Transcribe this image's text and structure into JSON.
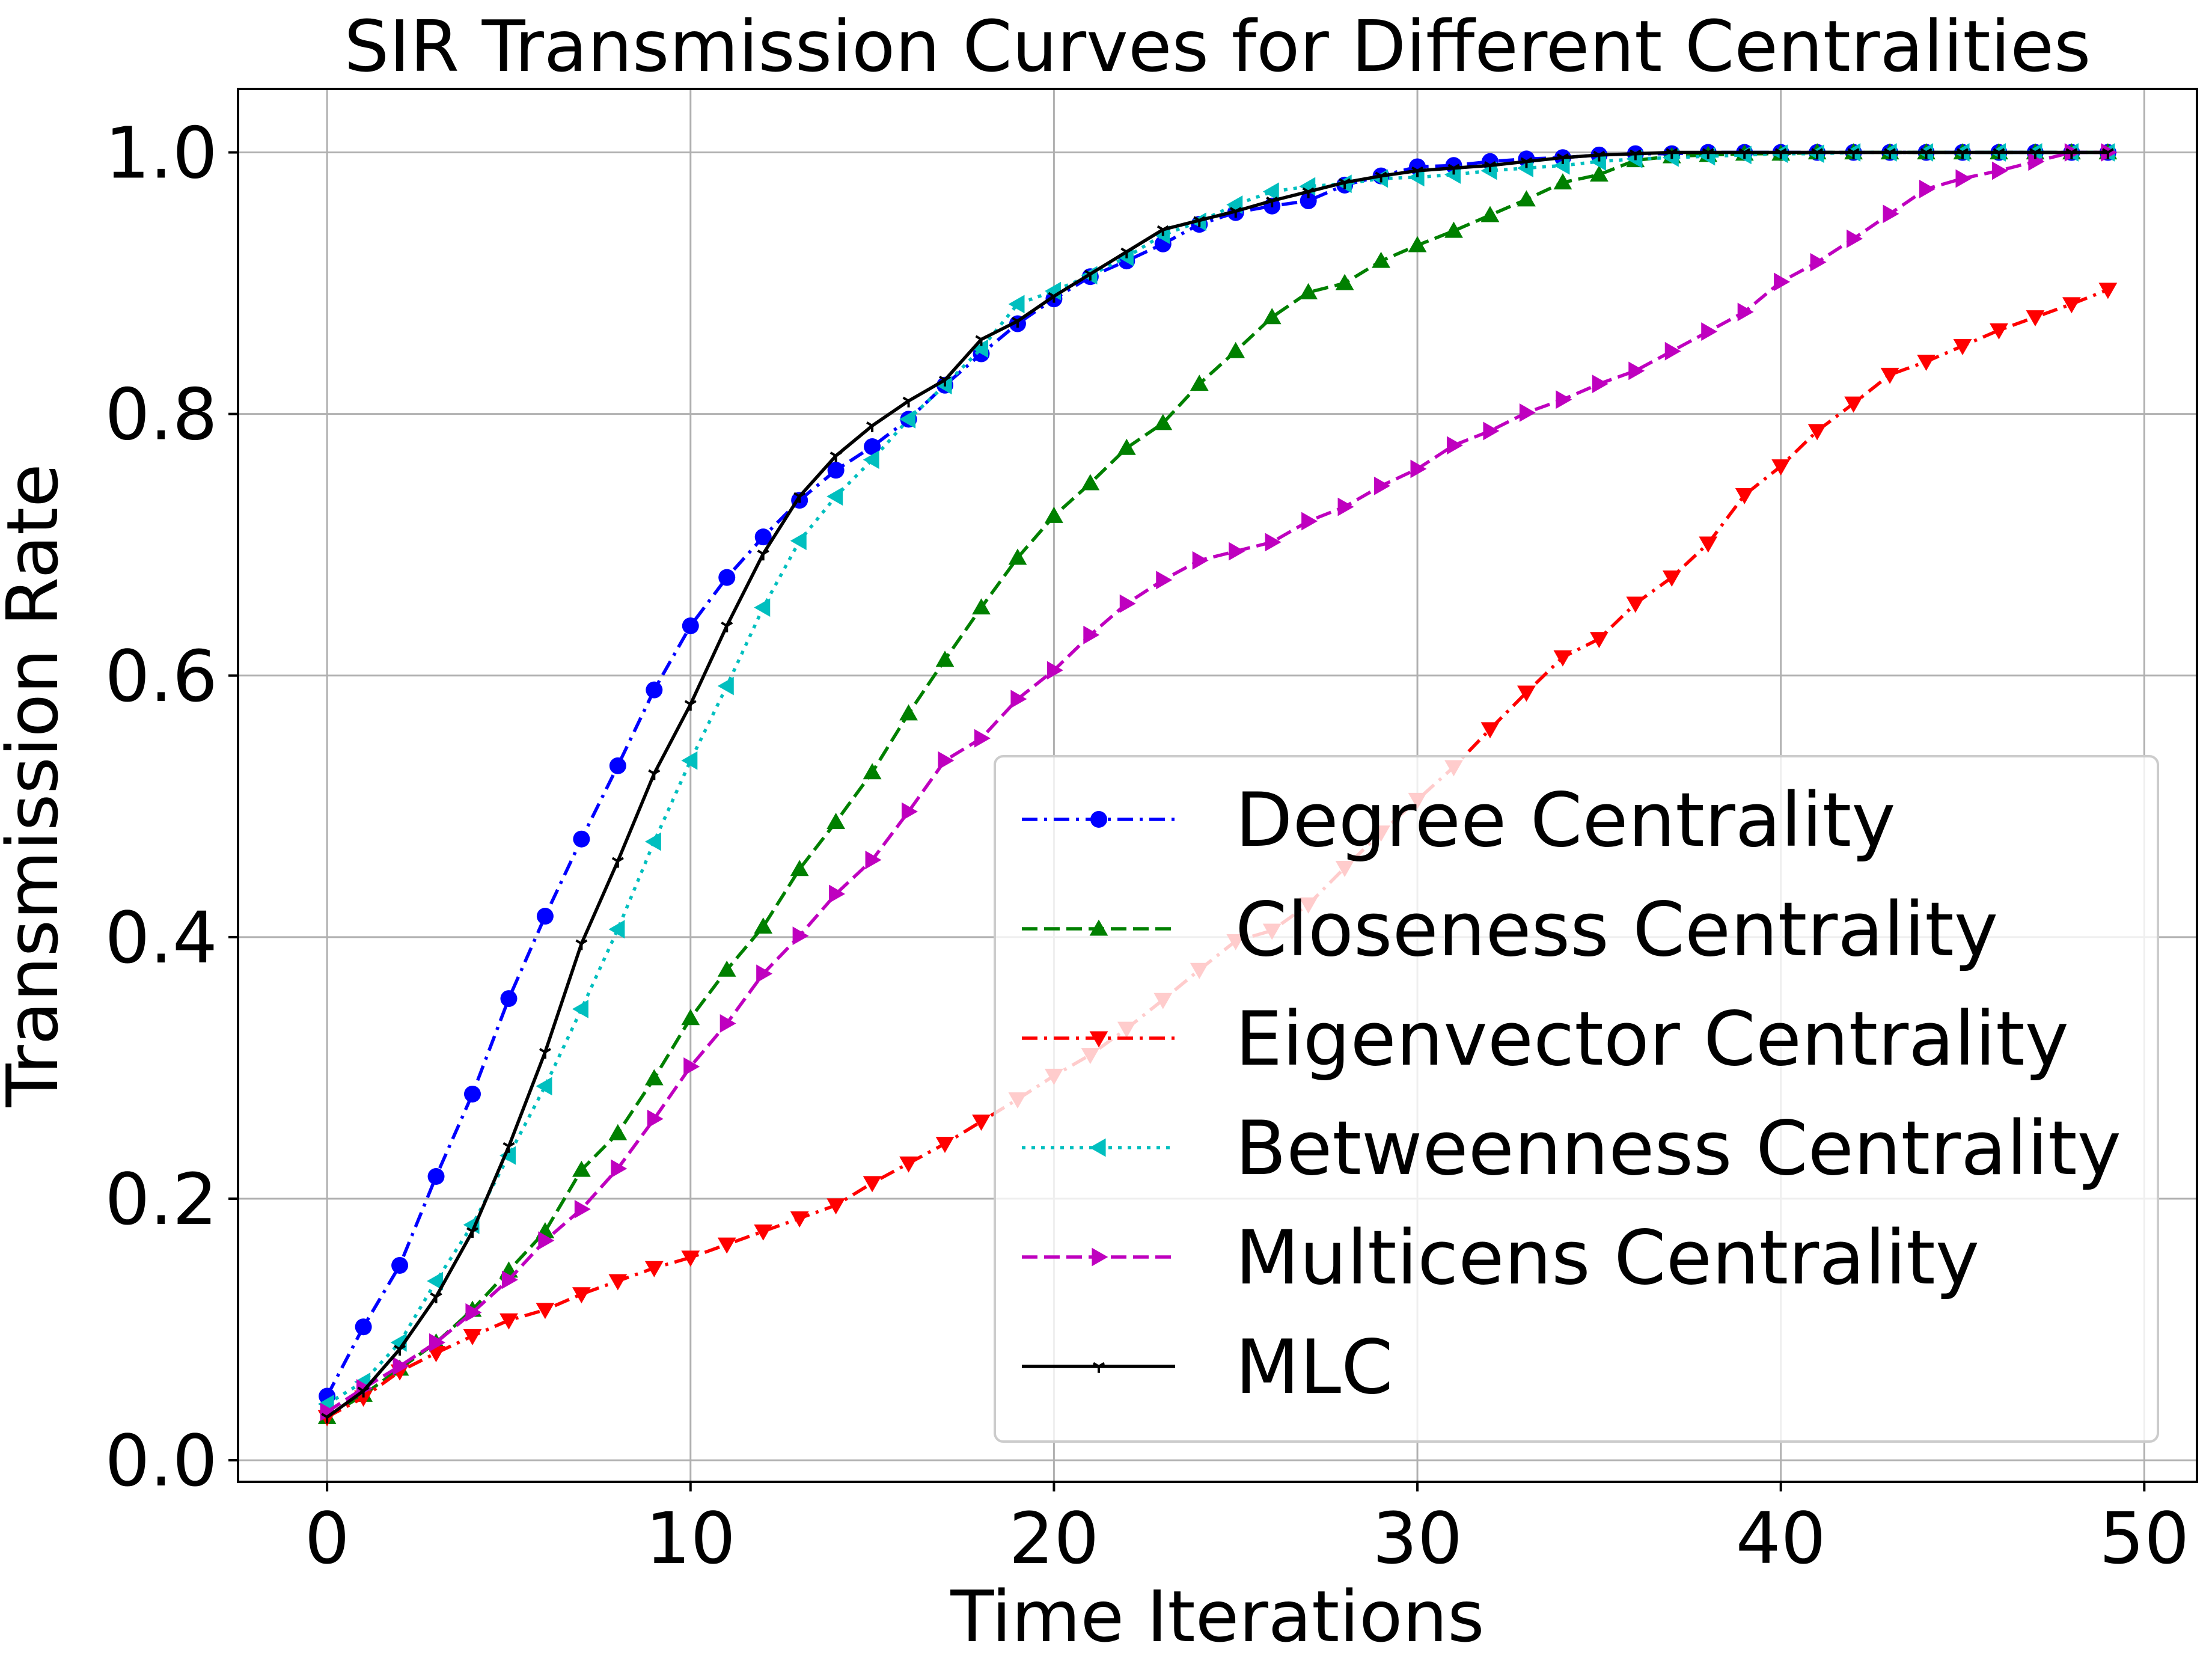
{
  "chart_data": {
    "type": "line",
    "title": "SIR Transmission Curves for Different Centralities",
    "xlabel": "Time Iterations",
    "ylabel": "Transmission Rate",
    "xlim": [
      -2.45,
      51.45
    ],
    "ylim": [
      -0.0165,
      1.0485
    ],
    "xticks": [
      0,
      10,
      20,
      30,
      40,
      50
    ],
    "xtick_labels": [
      "0",
      "10",
      "20",
      "30",
      "40",
      "50"
    ],
    "yticks": [
      0.0,
      0.2,
      0.4,
      0.6,
      0.8,
      1.0
    ],
    "ytick_labels": [
      "0.0",
      "0.2",
      "0.4",
      "0.6",
      "0.8",
      "1.0"
    ],
    "grid": true,
    "legend_position": "lower-right",
    "x": [
      0,
      1,
      2,
      3,
      4,
      5,
      6,
      7,
      8,
      9,
      10,
      11,
      12,
      13,
      14,
      15,
      16,
      17,
      18,
      19,
      20,
      21,
      22,
      23,
      24,
      25,
      26,
      27,
      28,
      29,
      30,
      31,
      32,
      33,
      34,
      35,
      36,
      37,
      38,
      39,
      40,
      41,
      42,
      43,
      44,
      45,
      46,
      47,
      48,
      49
    ],
    "series": [
      {
        "name": "Degree Centrality",
        "color": "#0000ff",
        "linestyle": "dashdot",
        "marker": "circle",
        "values": [
          0.049,
          0.102,
          0.149,
          0.217,
          0.28,
          0.353,
          0.416,
          0.475,
          0.531,
          0.589,
          0.638,
          0.675,
          0.706,
          0.734,
          0.757,
          0.775,
          0.796,
          0.822,
          0.846,
          0.869,
          0.888,
          0.905,
          0.917,
          0.93,
          0.945,
          0.954,
          0.959,
          0.963,
          0.975,
          0.982,
          0.989,
          0.99,
          0.993,
          0.995,
          0.996,
          0.998,
          0.999,
          0.999,
          1.0,
          1.0,
          1.0,
          1.0,
          1.0,
          1.0,
          1.0,
          1.0,
          1.0,
          1.0,
          1.0,
          1.0
        ]
      },
      {
        "name": "Closeness Centrality",
        "color": "#008000",
        "linestyle": "dashed",
        "marker": "triangle-up",
        "values": [
          0.033,
          0.05,
          0.07,
          0.09,
          0.115,
          0.145,
          0.175,
          0.222,
          0.25,
          0.292,
          0.338,
          0.375,
          0.408,
          0.452,
          0.488,
          0.526,
          0.571,
          0.612,
          0.652,
          0.69,
          0.722,
          0.747,
          0.774,
          0.793,
          0.823,
          0.848,
          0.874,
          0.893,
          0.9,
          0.917,
          0.929,
          0.94,
          0.952,
          0.964,
          0.977,
          0.983,
          0.994,
          0.997,
          0.998,
          0.999,
          0.999,
          1.0,
          1.0,
          1.0,
          1.0,
          1.0,
          1.0,
          1.0,
          1.0,
          1.0
        ]
      },
      {
        "name": "Eigenvector Centrality",
        "color": "#ff0000",
        "linestyle": "dashdot",
        "marker": "triangle-down",
        "values": [
          0.033,
          0.048,
          0.068,
          0.082,
          0.095,
          0.107,
          0.115,
          0.127,
          0.137,
          0.147,
          0.155,
          0.165,
          0.175,
          0.185,
          0.195,
          0.212,
          0.227,
          0.242,
          0.259,
          0.276,
          0.294,
          0.31,
          0.33,
          0.352,
          0.375,
          0.397,
          0.405,
          0.425,
          0.453,
          0.48,
          0.505,
          0.53,
          0.559,
          0.587,
          0.614,
          0.628,
          0.655,
          0.675,
          0.701,
          0.738,
          0.76,
          0.787,
          0.808,
          0.83,
          0.84,
          0.852,
          0.864,
          0.874,
          0.884,
          0.895
        ]
      },
      {
        "name": "Betweenness Centrality",
        "color": "#00bfbf",
        "linestyle": "dotted",
        "marker": "triangle-left",
        "values": [
          0.043,
          0.06,
          0.09,
          0.137,
          0.18,
          0.233,
          0.286,
          0.345,
          0.406,
          0.473,
          0.535,
          0.592,
          0.652,
          0.703,
          0.737,
          0.765,
          0.796,
          0.822,
          0.85,
          0.884,
          0.894,
          0.906,
          0.92,
          0.937,
          0.947,
          0.96,
          0.97,
          0.974,
          0.976,
          0.98,
          0.981,
          0.983,
          0.986,
          0.988,
          0.99,
          0.993,
          0.995,
          0.996,
          0.997,
          0.998,
          0.999,
          0.999,
          1.0,
          1.0,
          1.0,
          1.0,
          1.0,
          1.0,
          1.0,
          1.0
        ]
      },
      {
        "name": "Multicens Centrality",
        "color": "#bf00bf",
        "linestyle": "dashed",
        "marker": "triangle-right",
        "values": [
          0.037,
          0.055,
          0.072,
          0.09,
          0.113,
          0.138,
          0.168,
          0.192,
          0.223,
          0.261,
          0.301,
          0.334,
          0.372,
          0.401,
          0.433,
          0.459,
          0.496,
          0.535,
          0.552,
          0.582,
          0.604,
          0.631,
          0.655,
          0.673,
          0.688,
          0.695,
          0.702,
          0.718,
          0.729,
          0.745,
          0.758,
          0.776,
          0.787,
          0.801,
          0.811,
          0.823,
          0.833,
          0.848,
          0.863,
          0.878,
          0.901,
          0.916,
          0.934,
          0.953,
          0.972,
          0.98,
          0.986,
          0.993,
          1.0,
          1.0
        ]
      },
      {
        "name": "MLC",
        "color": "#000000",
        "linestyle": "solid",
        "marker": "tri-down",
        "values": [
          0.033,
          0.053,
          0.085,
          0.125,
          0.175,
          0.24,
          0.312,
          0.395,
          0.458,
          0.525,
          0.578,
          0.638,
          0.693,
          0.737,
          0.768,
          0.791,
          0.81,
          0.826,
          0.857,
          0.871,
          0.89,
          0.907,
          0.924,
          0.941,
          0.948,
          0.955,
          0.963,
          0.97,
          0.977,
          0.982,
          0.986,
          0.988,
          0.99,
          0.993,
          0.996,
          0.998,
          0.999,
          1.0,
          1.0,
          1.0,
          1.0,
          1.0,
          1.0,
          1.0,
          1.0,
          1.0,
          1.0,
          1.0,
          1.0,
          1.0
        ]
      }
    ]
  }
}
